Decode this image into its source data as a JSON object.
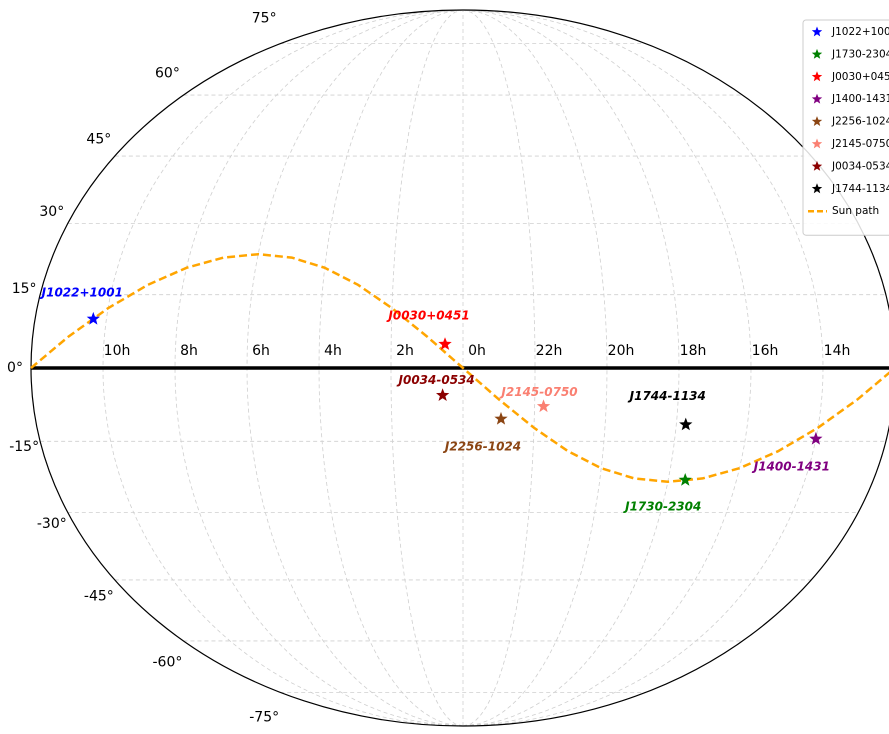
{
  "chart_data": {
    "type": "scatter",
    "projection": "mollweide",
    "grid": true,
    "legend": "upper right",
    "xticks": [
      {
        "value": 10,
        "label": "10h"
      },
      {
        "value": 8,
        "label": "8h"
      },
      {
        "value": 6,
        "label": "6h"
      },
      {
        "value": 4,
        "label": "4h"
      },
      {
        "value": 2,
        "label": "2h"
      },
      {
        "value": 0,
        "label": "0h"
      },
      {
        "value": 22,
        "label": "22h"
      },
      {
        "value": 20,
        "label": "20h"
      },
      {
        "value": 18,
        "label": "18h"
      },
      {
        "value": 16,
        "label": "16h"
      },
      {
        "value": 14,
        "label": "14h"
      }
    ],
    "yticks": [
      {
        "value": -75,
        "label": "-75°"
      },
      {
        "value": -60,
        "label": "-60°"
      },
      {
        "value": -45,
        "label": "-45°"
      },
      {
        "value": -30,
        "label": "-30°"
      },
      {
        "value": -15,
        "label": "-15°"
      },
      {
        "value": 0,
        "label": "0°"
      },
      {
        "value": 15,
        "label": "15°"
      },
      {
        "value": 30,
        "label": "30°"
      },
      {
        "value": 45,
        "label": "45°"
      },
      {
        "value": 60,
        "label": "60°"
      },
      {
        "value": 75,
        "label": "75°"
      }
    ],
    "series": [
      {
        "name": "J1022+1001",
        "type": "scatter",
        "color": "#0000ff",
        "x": [
          10.367
        ],
        "y": [
          10.017
        ]
      },
      {
        "name": "J1730-2304",
        "type": "scatter",
        "color": "#008000",
        "x": [
          17.5
        ],
        "y": [
          -23.067
        ]
      },
      {
        "name": "J0030+0451",
        "type": "scatter",
        "color": "#ff0000",
        "x": [
          0.5
        ],
        "y": [
          4.85
        ]
      },
      {
        "name": "J1400-1431",
        "type": "scatter",
        "color": "#800080",
        "x": [
          14.0
        ],
        "y": [
          -14.517
        ]
      },
      {
        "name": "J2256-1024",
        "type": "scatter",
        "color": "#8b4513",
        "x": [
          22.933
        ],
        "y": [
          -10.4
        ]
      },
      {
        "name": "J2145-0750",
        "type": "scatter",
        "color": "#fa8072",
        "x": [
          21.75
        ],
        "y": [
          -7.833
        ]
      },
      {
        "name": "J0034-0534",
        "type": "scatter",
        "color": "#8b0000",
        "x": [
          0.567
        ],
        "y": [
          -5.567
        ]
      },
      {
        "name": "J1744-1134",
        "type": "scatter",
        "color": "#000000",
        "x": [
          17.733
        ],
        "y": [
          -11.567
        ]
      },
      {
        "name": "Sun path",
        "type": "line",
        "color": "#ffa500",
        "x": [
          12,
          11,
          10,
          9,
          8,
          7,
          6,
          5,
          4,
          3,
          2,
          1,
          0,
          23,
          22,
          21,
          20,
          19,
          18,
          17,
          16,
          15,
          14,
          13,
          12
        ],
        "y": [
          0,
          6.4,
          12.23,
          17.05,
          20.58,
          22.72,
          23.44,
          22.72,
          20.58,
          17.05,
          12.23,
          6.4,
          0,
          -6.4,
          -12.23,
          -17.05,
          -20.58,
          -22.72,
          -23.44,
          -22.72,
          -20.58,
          -17.05,
          -12.23,
          -6.4,
          0
        ]
      }
    ]
  }
}
